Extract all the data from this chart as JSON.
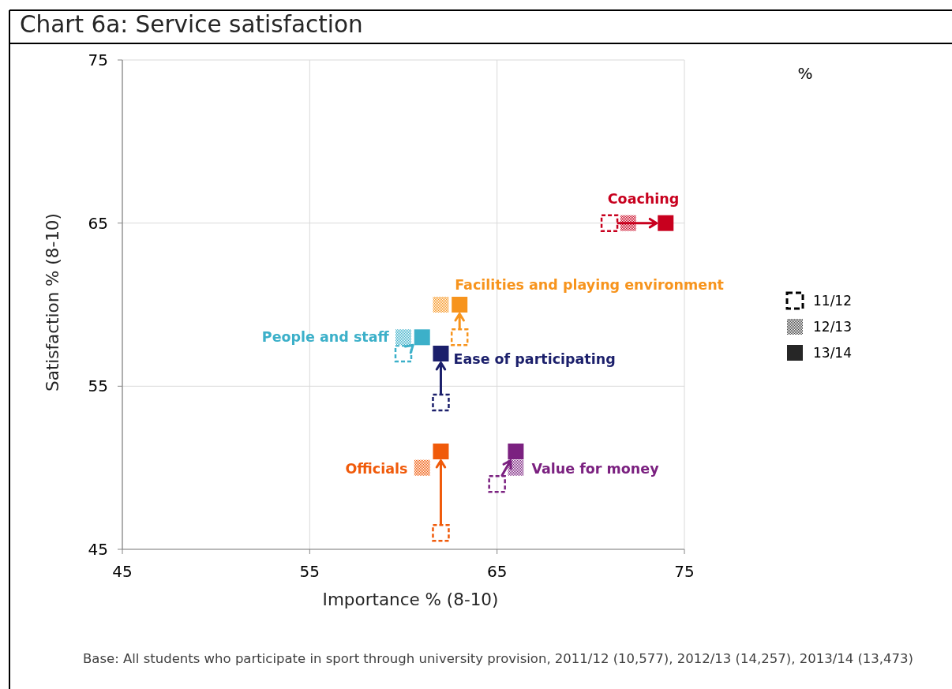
{
  "chart_data": {
    "type": "scatter",
    "title": "Chart 6a: Service satisfaction",
    "xlabel": "Importance % (8-10)",
    "ylabel": "Satisfaction % (8-10)",
    "annotations": [
      "11/12",
      "12/13",
      "13/14",
      "%",
      "Base: All students who participate in sport through university provision, 2011/12 (10,577), 2012/13 (14,257), 2013/14 (13,473)"
    ],
    "series": [
      {
        "name": "Coaching",
        "color": "#c8001e",
        "x": [
          71,
          72,
          74
        ],
        "values": [
          65,
          65,
          65
        ]
      },
      {
        "name": "Facilities and playing environment",
        "color": "#f7941d",
        "x": [
          63,
          62,
          63
        ],
        "values": [
          58,
          60,
          60
        ]
      },
      {
        "name": "People and staff",
        "color": "#3cb0c9",
        "x": [
          60,
          60,
          61
        ],
        "values": [
          57,
          58,
          58
        ]
      },
      {
        "name": "Ease of participating",
        "color": "#1b1f6b",
        "x": [
          62,
          null,
          62
        ],
        "values": [
          54,
          null,
          57
        ]
      },
      {
        "name": "Officials",
        "color": "#f05a0a",
        "x": [
          62,
          61,
          62
        ],
        "values": [
          46,
          50,
          51
        ]
      },
      {
        "name": "Value for money",
        "color": "#7b2180",
        "x": [
          65,
          66,
          66
        ],
        "values": [
          49,
          50,
          51
        ]
      }
    ],
    "marker": "square",
    "xlim": [
      45,
      75
    ],
    "xticks": [
      45,
      55,
      65,
      75
    ],
    "ylim": [
      45,
      75
    ],
    "yticks": [
      45,
      55,
      65,
      75
    ],
    "grid": true,
    "legend": "right"
  }
}
